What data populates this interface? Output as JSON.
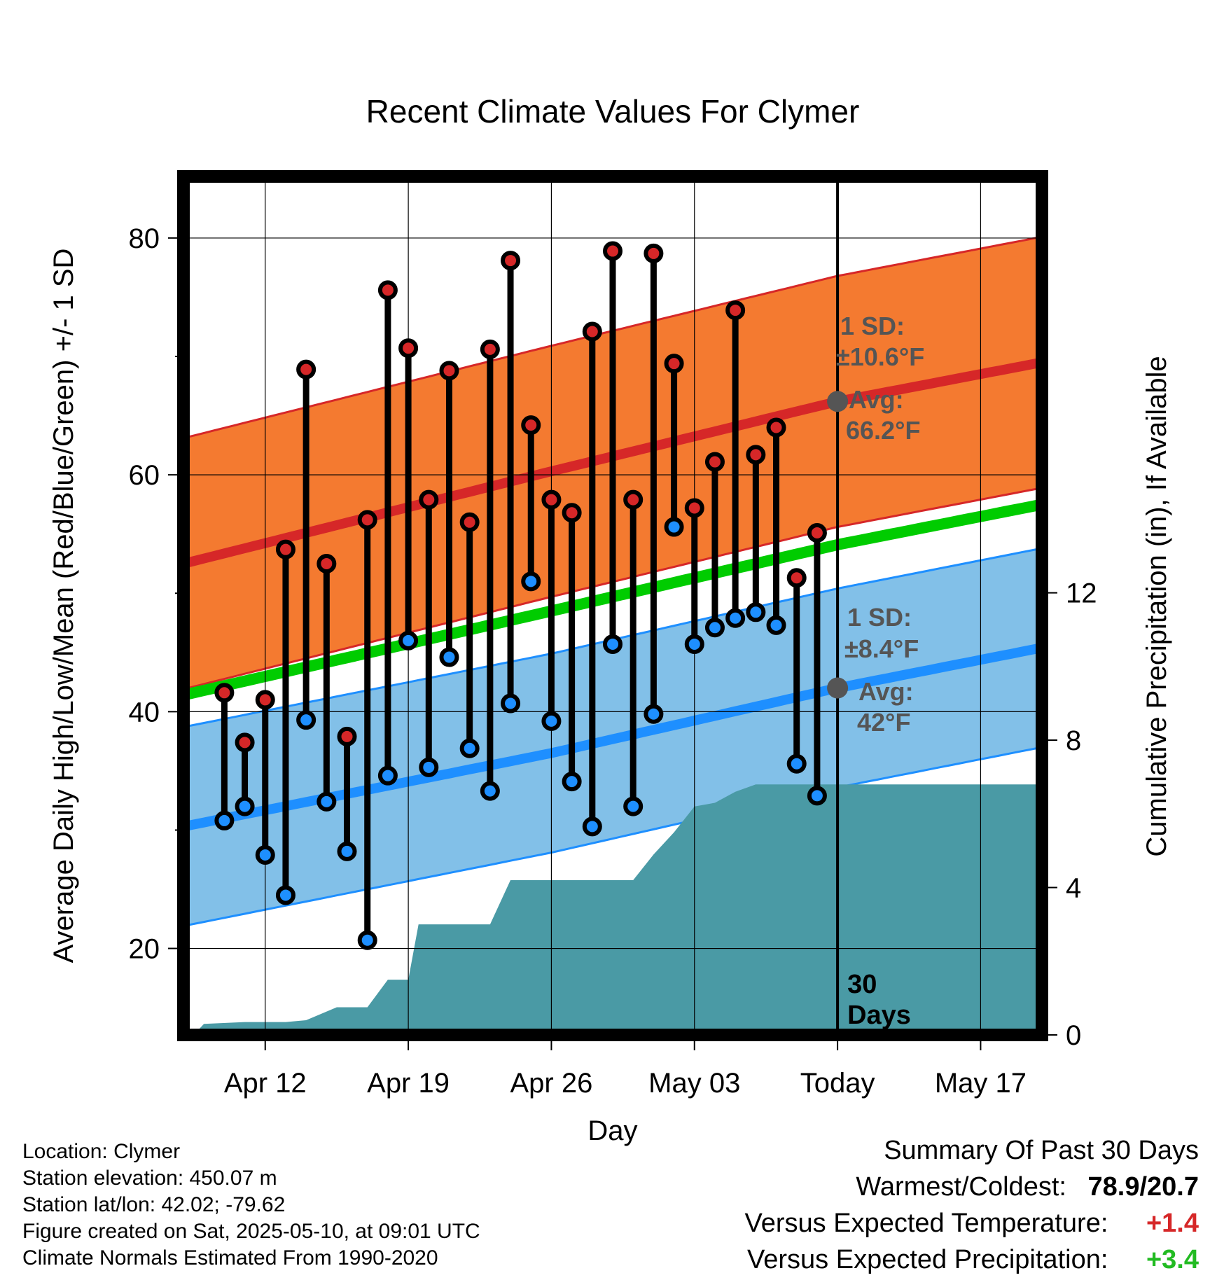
{
  "chart_data": {
    "type": "line",
    "title": "Recent Climate Values For Clymer",
    "xlabel": "Day",
    "ylabel": "Average Daily High/Low/Mean (Red/Blue/Green) +/- 1 SD",
    "y2label": "Cumulative Precipitation (in), If Available",
    "x_range_days": [
      -32,
      10
    ],
    "ylim": [
      12.7,
      85.2
    ],
    "y_ticks": [
      20,
      40,
      60,
      80
    ],
    "y2lim": [
      0,
      23.3
    ],
    "y2_ticks": [
      0,
      4,
      8,
      12
    ],
    "x_ticks": [
      {
        "day": -28,
        "label": "Apr 12"
      },
      {
        "day": -21,
        "label": "Apr 19"
      },
      {
        "day": -14,
        "label": "Apr 26"
      },
      {
        "day": -7,
        "label": "May 03"
      },
      {
        "day": 0,
        "label": "Today"
      },
      {
        "day": 7,
        "label": "May 17"
      }
    ],
    "grid": true,
    "today_day": 0,
    "today_label_line1": "30",
    "today_label_line2": "Days",
    "normals": {
      "high_mean": {
        "day": [
          -32,
          -14,
          0,
          10
        ],
        "value": [
          52.5,
          60.3,
          66.2,
          69.5
        ],
        "color": "#d62728"
      },
      "high_sd": 10.6,
      "low_mean": {
        "day": [
          -32,
          -14,
          0,
          10
        ],
        "value": [
          30.3,
          36.5,
          42.0,
          45.4
        ],
        "color": "#1e8fff"
      },
      "low_sd": 8.4,
      "daily_mean": {
        "day": [
          -32,
          -14,
          0,
          10
        ],
        "value": [
          41.4,
          48.5,
          54.1,
          57.5
        ],
        "color": "#00cc00"
      },
      "high_band_color": "#f47a30",
      "low_band_color": "#82c0e8"
    },
    "annotations": {
      "high_sd_label": "1 SD:",
      "high_sd_value": "±10.6°F",
      "high_avg_label": "Avg:",
      "high_avg_value": "66.2°F",
      "low_sd_label": "1 SD:",
      "low_sd_value": "±8.4°F",
      "low_avg_label": "Avg:",
      "low_avg_value": "42°F"
    },
    "observed": {
      "day": [
        -30,
        -29,
        -28,
        -27,
        -26,
        -25,
        -24,
        -23,
        -22,
        -21,
        -20,
        -19,
        -18,
        -17,
        -16,
        -15,
        -14,
        -13,
        -12,
        -11,
        -10,
        -9,
        -8,
        -7,
        -6,
        -5,
        -4,
        -3,
        -2,
        -1
      ],
      "high": [
        41.6,
        37.4,
        41.0,
        53.7,
        68.9,
        52.5,
        37.9,
        56.2,
        75.6,
        70.7,
        57.9,
        68.8,
        56.0,
        70.6,
        78.1,
        64.2,
        57.9,
        56.8,
        72.1,
        78.9,
        57.9,
        78.7,
        69.4,
        57.2,
        61.1,
        73.9,
        61.7,
        64.0,
        51.3,
        55.1
      ],
      "low": [
        30.8,
        32.0,
        27.9,
        24.5,
        39.3,
        32.4,
        28.2,
        20.7,
        34.6,
        46.0,
        35.3,
        44.6,
        36.9,
        33.3,
        40.7,
        51.0,
        39.2,
        34.1,
        30.3,
        45.7,
        32.0,
        39.8,
        55.6,
        45.7,
        47.1,
        47.9,
        48.4,
        47.3,
        35.6,
        32.9
      ],
      "high_color": "#d62728",
      "low_color": "#1e8fff"
    },
    "precip_cumulative": {
      "day": [
        -31.5,
        -31,
        -29,
        -27,
        -26,
        -24.5,
        -23,
        -22,
        -21,
        -20.5,
        -19.5,
        -19,
        -17,
        -16,
        -15,
        -14,
        -12,
        -11,
        -10,
        -9,
        -8,
        -7,
        -6,
        -5,
        -4,
        -3.5,
        -3,
        -2,
        -1,
        0,
        10
      ],
      "value": [
        0.0,
        0.3,
        0.35,
        0.35,
        0.4,
        0.75,
        0.75,
        1.5,
        1.5,
        3.0,
        3.0,
        3.0,
        3.0,
        4.2,
        4.2,
        4.2,
        4.2,
        4.2,
        4.2,
        4.9,
        5.5,
        6.2,
        6.3,
        6.6,
        6.8,
        6.8,
        6.8,
        6.8,
        6.8,
        6.8,
        6.8
      ],
      "color": "#4a9aa5"
    }
  },
  "footer": {
    "location": "Location: Clymer",
    "elevation": "Station elevation: 450.07 m",
    "latlon": "Station lat/lon: 42.02; -79.62",
    "created": "Figure created on Sat, 2025-05-10, at 09:01 UTC",
    "normals_period": "Climate Normals Estimated From 1990-2020"
  },
  "summary": {
    "heading": "Summary Of Past 30 Days",
    "warm_cold_label": "Warmest/Coldest:",
    "warm_cold_value": "78.9/20.7",
    "temp_label": "Versus Expected Temperature:",
    "temp_value": "+1.4",
    "temp_color": "#d62728",
    "precip_label": "Versus Expected Precipitation:",
    "precip_value": "+3.4",
    "precip_color": "#22bb22"
  }
}
